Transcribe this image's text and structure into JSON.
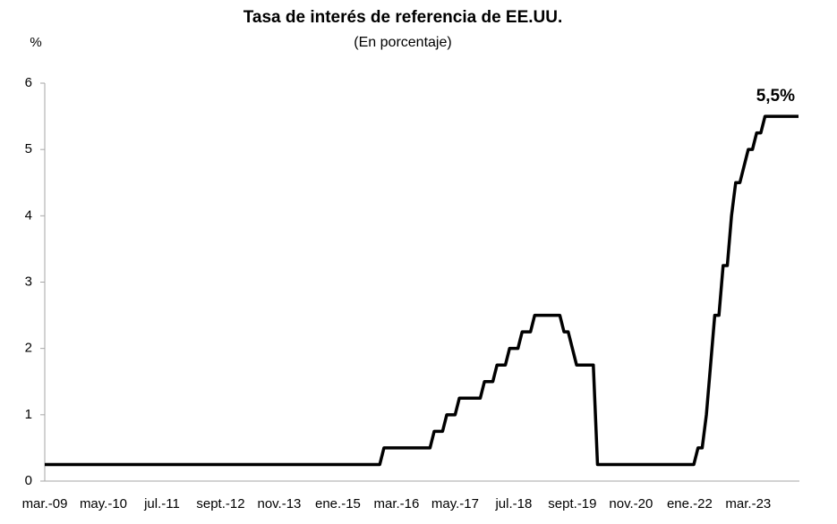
{
  "chart_data": {
    "type": "line",
    "title": "Tasa de interés de referencia de EE.UU.",
    "subtitle": "(En porcentaje)",
    "y_label": "%",
    "annotation": "5,5%",
    "categories": [
      "mar.-09",
      null,
      null,
      null,
      null,
      null,
      null,
      null,
      null,
      null,
      null,
      null,
      null,
      null,
      "may.-10",
      null,
      null,
      null,
      null,
      null,
      null,
      null,
      null,
      null,
      null,
      null,
      null,
      null,
      "jul.-11",
      null,
      null,
      null,
      null,
      null,
      null,
      null,
      null,
      null,
      null,
      null,
      null,
      null,
      "sept.-12",
      null,
      null,
      null,
      null,
      null,
      null,
      null,
      null,
      null,
      null,
      null,
      null,
      null,
      "nov.-13",
      null,
      null,
      null,
      null,
      null,
      null,
      null,
      null,
      null,
      null,
      null,
      null,
      null,
      "ene.-15",
      null,
      null,
      null,
      null,
      null,
      null,
      null,
      null,
      null,
      null,
      null,
      null,
      null,
      "mar.-16",
      null,
      null,
      null,
      null,
      null,
      null,
      null,
      null,
      null,
      null,
      null,
      null,
      null,
      "may.-17",
      null,
      null,
      null,
      null,
      null,
      null,
      null,
      null,
      null,
      null,
      null,
      null,
      null,
      "jul.-18",
      null,
      null,
      null,
      null,
      null,
      null,
      null,
      null,
      null,
      null,
      null,
      null,
      null,
      "sept.-19",
      null,
      null,
      null,
      null,
      null,
      null,
      null,
      null,
      null,
      null,
      null,
      null,
      null,
      "nov.-20",
      null,
      null,
      null,
      null,
      null,
      null,
      null,
      null,
      null,
      null,
      null,
      null,
      null,
      "ene.-22",
      null,
      null,
      null,
      null,
      null,
      null,
      null,
      null,
      null,
      null,
      null,
      null,
      null,
      "mar.-23",
      null,
      null,
      null,
      null,
      null,
      null,
      null,
      null,
      null,
      null,
      null,
      null
    ],
    "values": [
      0.25,
      0.25,
      0.25,
      0.25,
      0.25,
      0.25,
      0.25,
      0.25,
      0.25,
      0.25,
      0.25,
      0.25,
      0.25,
      0.25,
      0.25,
      0.25,
      0.25,
      0.25,
      0.25,
      0.25,
      0.25,
      0.25,
      0.25,
      0.25,
      0.25,
      0.25,
      0.25,
      0.25,
      0.25,
      0.25,
      0.25,
      0.25,
      0.25,
      0.25,
      0.25,
      0.25,
      0.25,
      0.25,
      0.25,
      0.25,
      0.25,
      0.25,
      0.25,
      0.25,
      0.25,
      0.25,
      0.25,
      0.25,
      0.25,
      0.25,
      0.25,
      0.25,
      0.25,
      0.25,
      0.25,
      0.25,
      0.25,
      0.25,
      0.25,
      0.25,
      0.25,
      0.25,
      0.25,
      0.25,
      0.25,
      0.25,
      0.25,
      0.25,
      0.25,
      0.25,
      0.25,
      0.25,
      0.25,
      0.25,
      0.25,
      0.25,
      0.25,
      0.25,
      0.25,
      0.25,
      0.25,
      0.5,
      0.5,
      0.5,
      0.5,
      0.5,
      0.5,
      0.5,
      0.5,
      0.5,
      0.5,
      0.5,
      0.5,
      0.75,
      0.75,
      0.75,
      1,
      1,
      1,
      1.25,
      1.25,
      1.25,
      1.25,
      1.25,
      1.25,
      1.5,
      1.5,
      1.5,
      1.75,
      1.75,
      1.75,
      2,
      2,
      2,
      2.25,
      2.25,
      2.25,
      2.5,
      2.5,
      2.5,
      2.5,
      2.5,
      2.5,
      2.5,
      2.25,
      2.25,
      2,
      1.75,
      1.75,
      1.75,
      1.75,
      1.75,
      0.25,
      0.25,
      0.25,
      0.25,
      0.25,
      0.25,
      0.25,
      0.25,
      0.25,
      0.25,
      0.25,
      0.25,
      0.25,
      0.25,
      0.25,
      0.25,
      0.25,
      0.25,
      0.25,
      0.25,
      0.25,
      0.25,
      0.25,
      0.25,
      0.5,
      0.5,
      1,
      1.75,
      2.5,
      2.5,
      3.25,
      3.25,
      4,
      4.5,
      4.5,
      4.75,
      5,
      5,
      5.25,
      5.25,
      5.5,
      5.5,
      5.5,
      5.5,
      5.5,
      5.5,
      5.5,
      5.5,
      5.5
    ],
    "color": "#000000",
    "ylim": [
      0,
      6
    ],
    "yticks": [
      0,
      1,
      2,
      3,
      4,
      5,
      6
    ],
    "grid": false
  }
}
